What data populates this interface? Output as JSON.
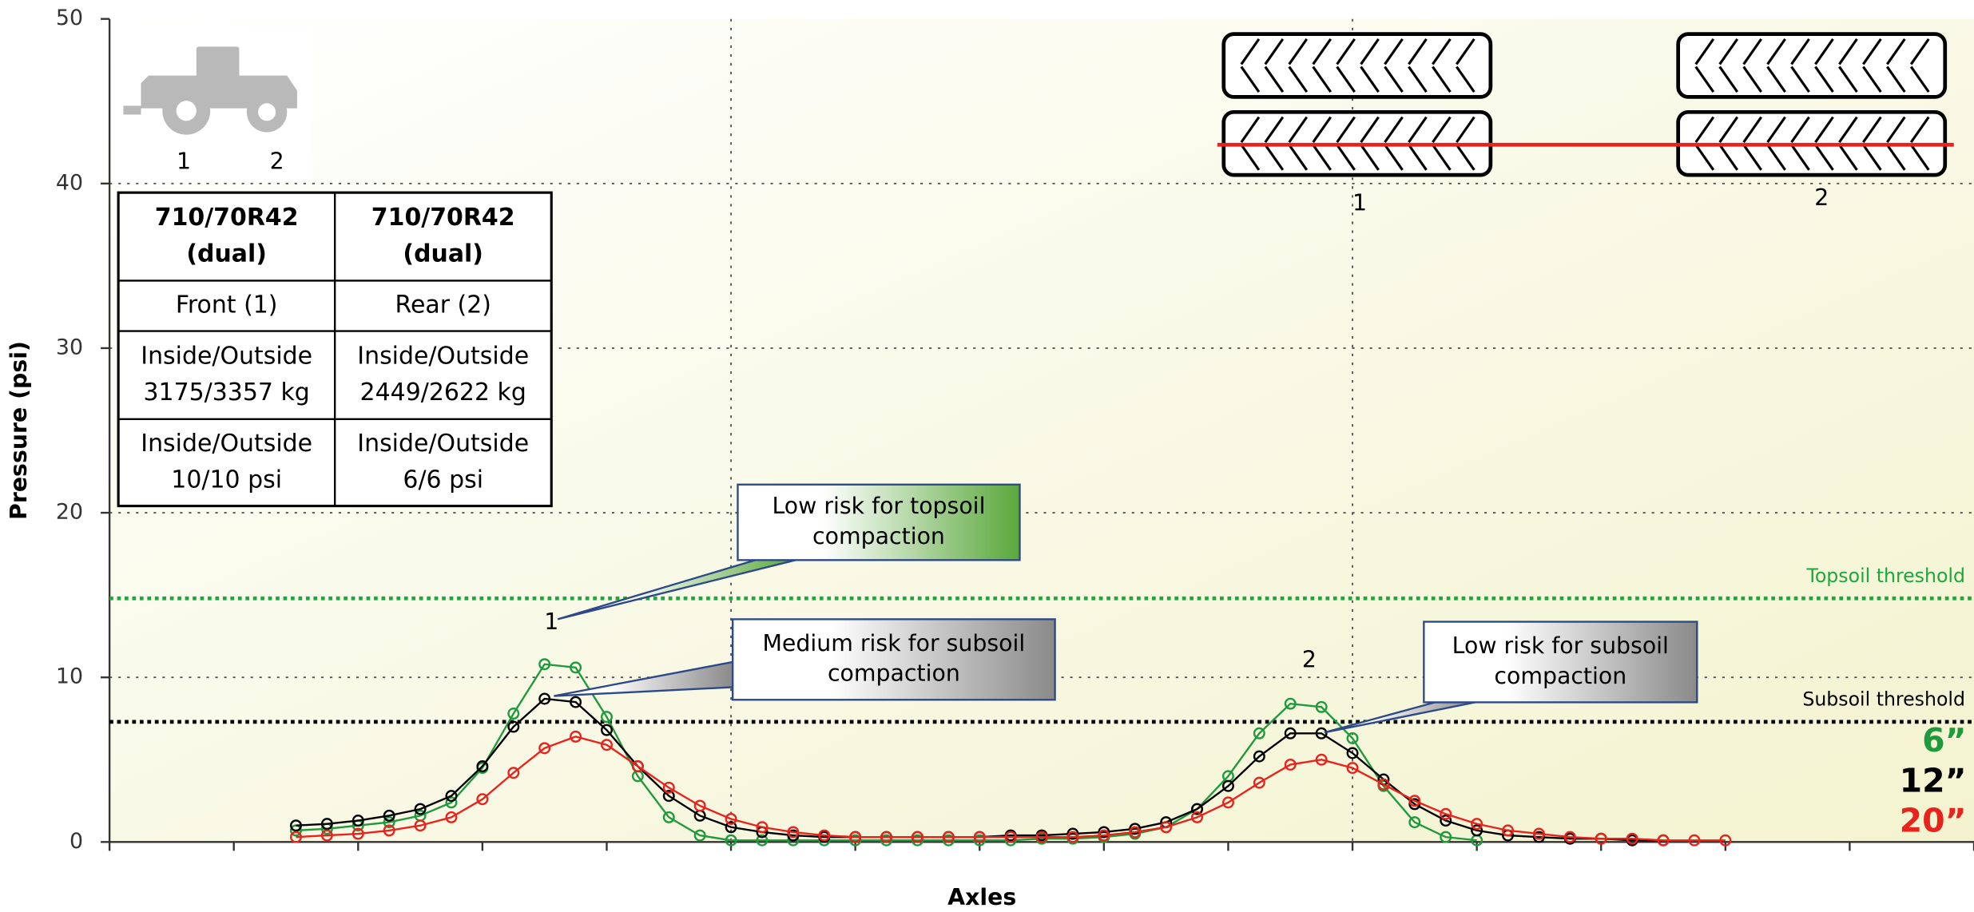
{
  "chart_data": {
    "type": "line",
    "y_label": "Pressure (psi)",
    "x_label": "Axles",
    "x": [
      1.5,
      1.75,
      2,
      2.25,
      2.5,
      2.75,
      3,
      3.25,
      3.5,
      3.75,
      4,
      4.25,
      4.5,
      4.75,
      5,
      5.25,
      5.5,
      5.75,
      6,
      6.25,
      6.5,
      6.75,
      7,
      7.25,
      7.5,
      7.75,
      8,
      8.25,
      8.5,
      8.75,
      9,
      9.25,
      9.5,
      9.75,
      10,
      10.25,
      10.5,
      10.75,
      11,
      11.25,
      11.5,
      11.75,
      12,
      12.25,
      12.5,
      12.75,
      13
    ],
    "series": [
      {
        "name": "6”",
        "color": "#1e9a3c",
        "values": [
          0.7,
          0.8,
          1.0,
          1.2,
          1.6,
          2.4,
          4.5,
          7.8,
          10.8,
          10.6,
          7.6,
          4.0,
          1.5,
          0.4,
          0.1,
          0.1,
          0.1,
          0.1,
          0.1,
          0.1,
          0.1,
          0.1,
          0.1,
          0.1,
          0.2,
          0.2,
          0.3,
          0.5,
          0.9,
          2.0,
          4.0,
          6.6,
          8.4,
          8.2,
          6.3,
          3.4,
          1.2,
          0.3,
          0.1,
          null,
          null,
          null,
          null,
          null,
          null,
          null,
          null
        ]
      },
      {
        "name": "12”",
        "color": "#000000",
        "values": [
          1.0,
          1.1,
          1.3,
          1.6,
          2.0,
          2.8,
          4.6,
          7.0,
          8.7,
          8.5,
          6.8,
          4.6,
          2.8,
          1.6,
          0.9,
          0.6,
          0.4,
          0.3,
          0.3,
          0.3,
          0.3,
          0.3,
          0.3,
          0.4,
          0.4,
          0.5,
          0.6,
          0.8,
          1.2,
          2.0,
          3.4,
          5.2,
          6.6,
          6.6,
          5.4,
          3.8,
          2.3,
          1.3,
          0.7,
          0.4,
          0.3,
          0.2,
          0.2,
          0.1,
          0.1,
          null,
          null
        ]
      },
      {
        "name": "20”",
        "color": "#e8221c",
        "values": [
          0.3,
          0.4,
          0.5,
          0.7,
          1.0,
          1.5,
          2.6,
          4.2,
          5.7,
          6.4,
          5.9,
          4.6,
          3.3,
          2.2,
          1.4,
          0.9,
          0.6,
          0.4,
          0.3,
          0.3,
          0.3,
          0.3,
          0.3,
          0.3,
          0.3,
          0.3,
          0.4,
          0.6,
          0.9,
          1.5,
          2.4,
          3.6,
          4.7,
          5.0,
          4.5,
          3.5,
          2.5,
          1.7,
          1.1,
          0.7,
          0.5,
          0.3,
          0.2,
          0.2,
          0.1,
          0.1,
          0.1
        ]
      }
    ],
    "xlim": [
      0,
      15
    ],
    "xticks": [
      0,
      1,
      2,
      3,
      4,
      5,
      6,
      7,
      8,
      9,
      10,
      11,
      12,
      13,
      14,
      15
    ],
    "x_grid_lines": [
      5,
      10
    ],
    "ylim": [
      0,
      50
    ],
    "yticks": [
      0,
      10,
      20,
      30,
      40,
      50
    ],
    "grid": true,
    "thresholds": [
      {
        "name": "Topsoil threshold",
        "value": 14.8,
        "color": "#1ea83c"
      },
      {
        "name": "Subsoil threshold",
        "value": 7.3,
        "color": "#000000"
      }
    ],
    "peak_labels": [
      "1",
      "2"
    ],
    "callouts": [
      {
        "lines": [
          "Low risk for topsoil",
          "compaction"
        ],
        "color": "#5aa83c"
      },
      {
        "lines": [
          "Medium risk for subsoil",
          "compaction"
        ],
        "color": "#8a8a8a"
      },
      {
        "lines": [
          "Low risk for subsoil",
          "compaction"
        ],
        "color": "#8a8a8a"
      }
    ]
  },
  "table": {
    "rows": [
      [
        [
          "710/70R42",
          "(dual)"
        ],
        [
          "710/70R42",
          "(dual)"
        ]
      ],
      [
        [
          "Front (1)"
        ],
        [
          "Rear (2)"
        ]
      ],
      [
        [
          "Inside/Outside",
          "3175/3357 kg"
        ],
        [
          "Inside/Outside",
          "2449/2622 kg"
        ]
      ],
      [
        [
          "Inside/Outside",
          "10/10 psi"
        ],
        [
          "Inside/Outside",
          "6/6 psi"
        ]
      ]
    ]
  },
  "tractor_axle_labels": [
    "1",
    "2"
  ],
  "tire_axle_labels": [
    "1",
    "2"
  ]
}
